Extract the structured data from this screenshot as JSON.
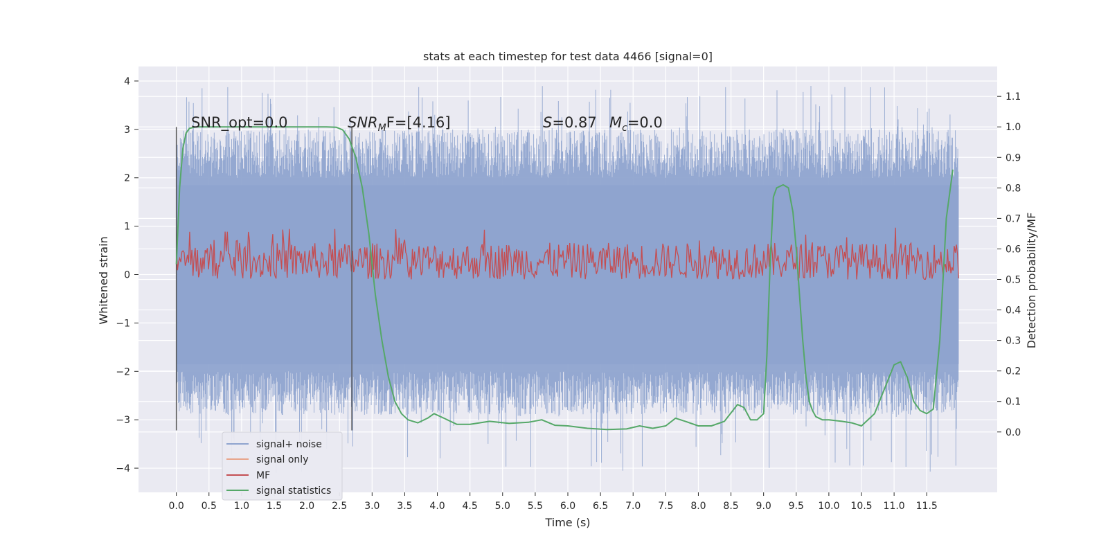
{
  "chart_data": {
    "type": "line",
    "title": "stats at each timestep for test data 4466 [signal=0]",
    "xlabel": "Time (s)",
    "ylabel_left": "Whitened strain",
    "ylabel_right": "Detection probability/MF",
    "xlim": [
      -0.58,
      12.58
    ],
    "ylim_left": [
      -4.5,
      4.3
    ],
    "ylim_right": [
      -0.198,
      1.198
    ],
    "x_ticks": [
      "0.0",
      "0.5",
      "1.0",
      "1.5",
      "2.0",
      "2.5",
      "3.0",
      "3.5",
      "4.0",
      "4.5",
      "5.0",
      "5.5",
      "6.0",
      "6.5",
      "7.0",
      "7.5",
      "8.0",
      "8.5",
      "9.0",
      "9.5",
      "10.0",
      "10.5",
      "11.0",
      "11.5"
    ],
    "y_ticks_left": [
      "−4",
      "−3",
      "−2",
      "−1",
      "0",
      "1",
      "2",
      "3",
      "4"
    ],
    "y_ticks_right": [
      "0.0",
      "0.1",
      "0.2",
      "0.3",
      "0.4",
      "0.5",
      "0.6",
      "0.7",
      "0.8",
      "0.9",
      "1.0",
      "1.1"
    ],
    "grid": true,
    "legend_position": "lower-left",
    "annotations": {
      "snr_opt": "SNR_opt=0.0",
      "snr_mf_main": "SNR",
      "snr_mf_sub": "M",
      "snr_mf_rest": "F=[4.16]",
      "s_main": "S",
      "s_rest": "=0.87",
      "mc_main": "M",
      "mc_sub": "c",
      "mc_rest": "=0.0"
    },
    "vertical_lines_x": [
      0.0,
      2.69
    ],
    "series": [
      {
        "name": "signal+ noise",
        "color": "#8fa4cf",
        "axis": "left",
        "x_range": [
          0.0,
          11.99
        ],
        "envelope": {
          "typical_low": -2.0,
          "typical_high": 2.0,
          "min": -4.1,
          "max": 3.9
        }
      },
      {
        "name": "signal only",
        "color": "#e8a48a",
        "axis": "left",
        "x": [
          0,
          12
        ],
        "y": [
          0,
          0
        ]
      },
      {
        "name": "MF",
        "color": "#c44e52",
        "axis": "right",
        "x_range": [
          0.0,
          11.99
        ],
        "envelope": {
          "low": 0.5,
          "high": 0.62,
          "max": 0.67
        }
      },
      {
        "name": "signal statistics",
        "color": "#55a868",
        "axis": "right",
        "x": [
          0.0,
          0.05,
          0.1,
          0.15,
          0.2,
          0.3,
          0.5,
          1.0,
          1.5,
          2.0,
          2.3,
          2.45,
          2.55,
          2.65,
          2.75,
          2.85,
          2.95,
          3.05,
          3.15,
          3.25,
          3.35,
          3.45,
          3.55,
          3.7,
          3.85,
          3.95,
          4.1,
          4.3,
          4.5,
          4.8,
          5.1,
          5.4,
          5.6,
          5.8,
          6.0,
          6.3,
          6.6,
          6.9,
          7.1,
          7.3,
          7.5,
          7.65,
          7.8,
          8.0,
          8.2,
          8.4,
          8.6,
          8.7,
          8.8,
          8.9,
          9.0,
          9.05,
          9.1,
          9.15,
          9.2,
          9.3,
          9.38,
          9.45,
          9.5,
          9.55,
          9.6,
          9.65,
          9.7,
          9.75,
          9.8,
          9.9,
          10.0,
          10.2,
          10.35,
          10.5,
          10.7,
          10.85,
          11.0,
          11.1,
          11.2,
          11.3,
          11.4,
          11.5,
          11.6,
          11.7,
          11.8,
          11.9
        ],
        "y": [
          0.55,
          0.8,
          0.93,
          0.98,
          0.995,
          1.0,
          1.0,
          1.0,
          1.0,
          1.0,
          1.0,
          0.999,
          0.99,
          0.96,
          0.9,
          0.8,
          0.65,
          0.45,
          0.3,
          0.18,
          0.1,
          0.06,
          0.04,
          0.03,
          0.045,
          0.06,
          0.045,
          0.025,
          0.025,
          0.035,
          0.028,
          0.032,
          0.04,
          0.022,
          0.02,
          0.012,
          0.008,
          0.01,
          0.02,
          0.012,
          0.02,
          0.045,
          0.035,
          0.02,
          0.02,
          0.035,
          0.09,
          0.08,
          0.04,
          0.04,
          0.06,
          0.25,
          0.55,
          0.77,
          0.8,
          0.81,
          0.8,
          0.72,
          0.6,
          0.45,
          0.3,
          0.18,
          0.1,
          0.07,
          0.05,
          0.04,
          0.04,
          0.035,
          0.03,
          0.02,
          0.06,
          0.14,
          0.22,
          0.23,
          0.18,
          0.1,
          0.07,
          0.06,
          0.075,
          0.3,
          0.7,
          0.86
        ]
      }
    ]
  }
}
